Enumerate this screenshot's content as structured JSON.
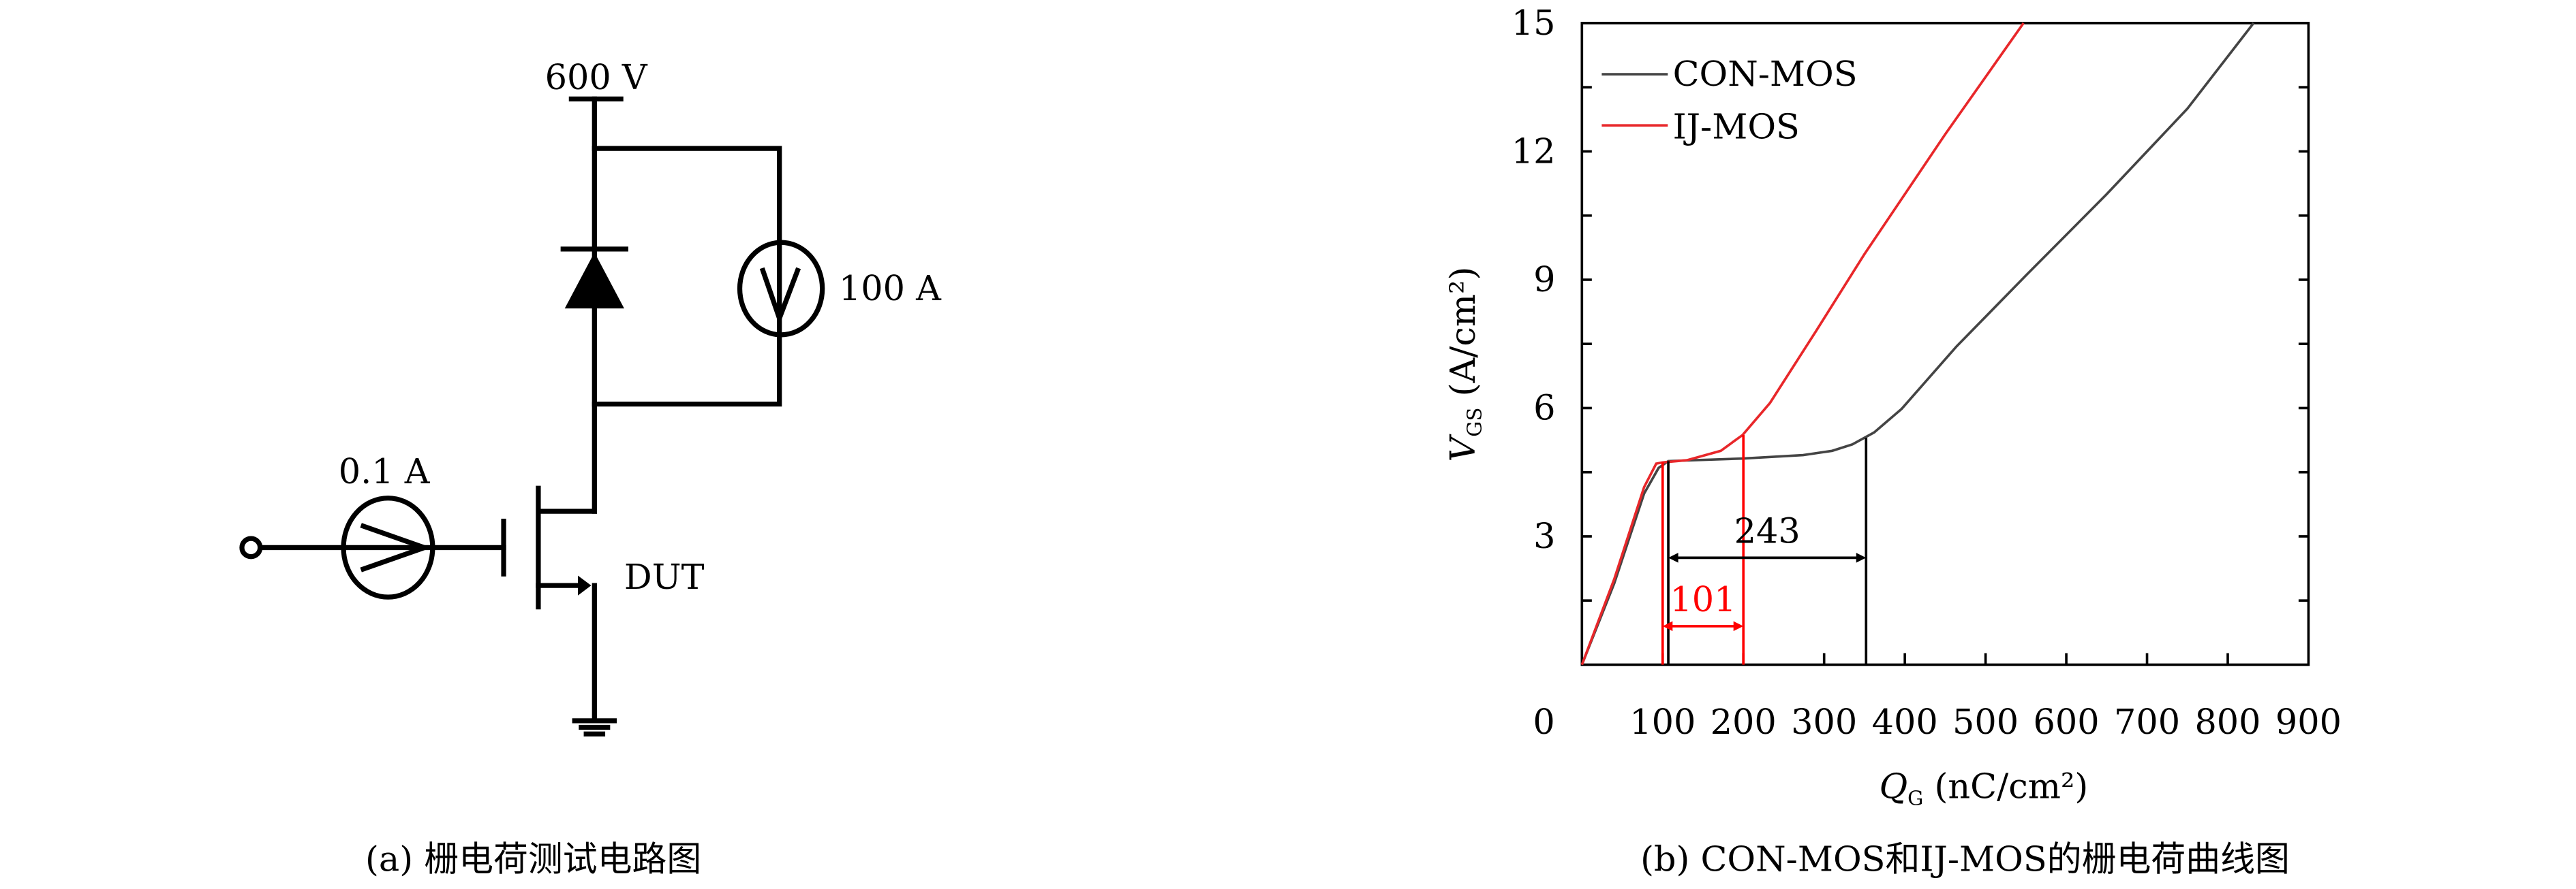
{
  "circuit": {
    "supply_label": "600 V",
    "load_source_label": "100 A",
    "gate_source_label": "0.1 A",
    "device_label": "DUT",
    "caption": "(a) 栅电荷测试电路图"
  },
  "chart_data": {
    "type": "line",
    "title": "",
    "xlabel": "Q_G (nC/cm²)",
    "xlabel_main": "Q",
    "xlabel_sub": "G",
    "xlabel_unit": " (nC/cm²)",
    "ylabel": "V_GS (A/cm²)",
    "ylabel_main": "V",
    "ylabel_sub": "GS",
    "ylabel_unit": " (A/cm²)",
    "xlim": [
      0,
      900
    ],
    "ylim": [
      0,
      15
    ],
    "xticks": [
      "0",
      "100",
      "200",
      "300",
      "400",
      "500",
      "600",
      "700",
      "800",
      "900"
    ],
    "yticks": [
      "3",
      "6",
      "9",
      "12",
      "15"
    ],
    "legend_placement": "top-left",
    "series": [
      {
        "name": "CON-MOS",
        "color": "#444444",
        "points": [
          [
            0,
            0
          ],
          [
            40,
            1.9
          ],
          [
            77,
            4.0
          ],
          [
            95,
            4.6
          ],
          [
            107,
            4.76
          ],
          [
            200,
            4.82
          ],
          [
            274,
            4.9
          ],
          [
            310,
            5.0
          ],
          [
            335,
            5.15
          ],
          [
            362,
            5.43
          ],
          [
            396,
            5.98
          ],
          [
            464,
            7.44
          ],
          [
            550,
            9.1
          ],
          [
            650,
            11.0
          ],
          [
            750,
            13.0
          ],
          [
            832,
            15
          ]
        ]
      },
      {
        "name": "IJ-MOS",
        "color": "#e8272a",
        "points": [
          [
            0,
            0
          ],
          [
            40,
            2.0
          ],
          [
            77,
            4.15
          ],
          [
            92,
            4.7
          ],
          [
            100,
            4.73
          ],
          [
            130,
            4.78
          ],
          [
            172,
            5.0
          ],
          [
            199,
            5.37
          ],
          [
            233,
            6.12
          ],
          [
            290,
            7.8
          ],
          [
            350,
            9.6
          ],
          [
            450,
            12.4
          ],
          [
            547,
            15
          ]
        ]
      }
    ],
    "annotations": [
      {
        "label": "243",
        "from": 107,
        "to": 352,
        "y": 2.5,
        "color": "#000000"
      },
      {
        "label": "101",
        "from": 100,
        "to": 200,
        "y": 0.9,
        "color": "#ff0000"
      }
    ],
    "caption": "(b) CON-MOS和IJ-MOS的栅电荷曲线图"
  }
}
